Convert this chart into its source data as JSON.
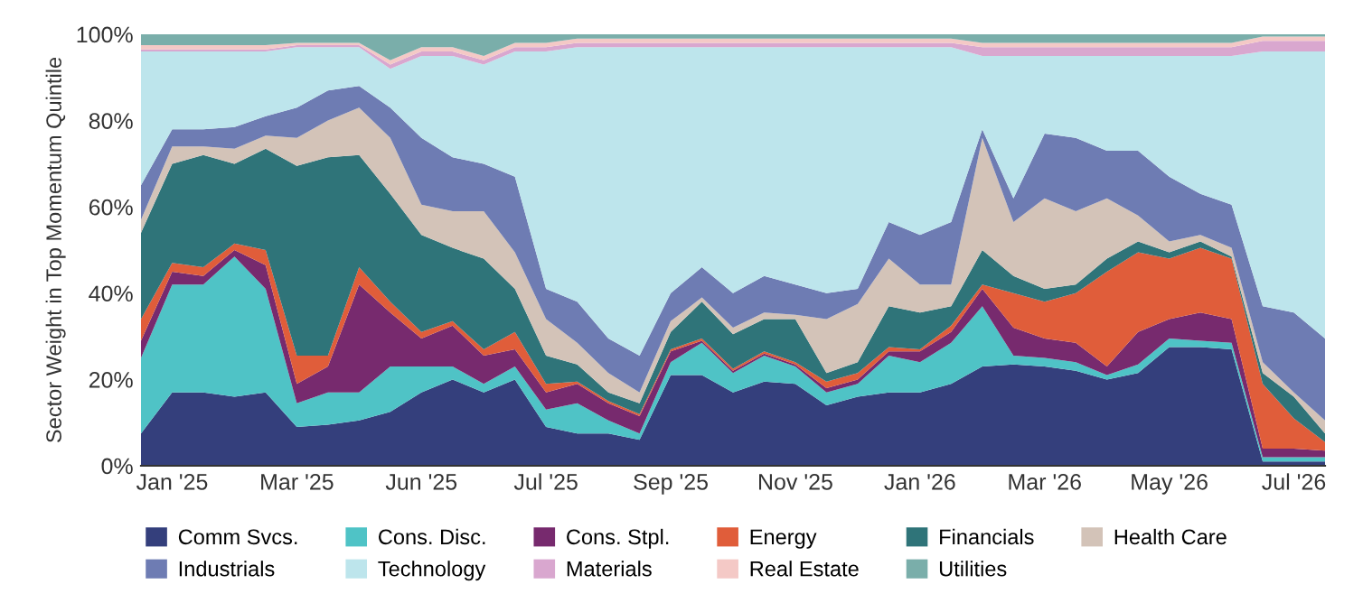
{
  "chart_data": {
    "type": "area",
    "stacked": true,
    "ylabel": "Sector Weight in Top Momentum Quintile",
    "categories": [
      null,
      "Jan '25",
      null,
      null,
      null,
      "Mar '25",
      null,
      null,
      null,
      "Jun '25",
      null,
      null,
      null,
      "Jul '25",
      null,
      null,
      null,
      "Sep '25",
      null,
      null,
      null,
      "Nov '25",
      null,
      null,
      null,
      "Jan '26",
      null,
      null,
      null,
      "Mar '26",
      null,
      null,
      null,
      "May '26",
      null,
      null,
      null,
      "Jul '26",
      null
    ],
    "ylim": [
      0,
      100
    ],
    "yticks": [
      {
        "value": 0,
        "label": "0%"
      },
      {
        "value": 20,
        "label": "20%"
      },
      {
        "value": 40,
        "label": "40%"
      },
      {
        "value": 60,
        "label": "60%"
      },
      {
        "value": 80,
        "label": "80%"
      },
      {
        "value": 100,
        "label": "100%"
      }
    ],
    "grid": false,
    "legend": "bottom",
    "series": [
      {
        "name": "Comm Svcs.",
        "color": "#343f7c",
        "values": [
          7.5,
          17,
          17,
          16,
          17,
          9,
          9.5,
          10.5,
          12.5,
          17,
          20,
          17,
          20,
          9,
          7.5,
          7.5,
          6,
          21,
          21,
          17,
          19.5,
          19,
          14,
          16,
          17,
          17,
          19,
          23,
          23.5,
          23,
          22,
          20,
          21.5,
          27.5,
          27.5,
          27,
          1,
          1,
          1
        ]
      },
      {
        "name": "Cons. Disc.",
        "color": "#4fc3c6",
        "values": [
          17.5,
          25,
          25,
          32.5,
          24,
          5.5,
          7.5,
          6.5,
          10.5,
          6,
          3,
          2,
          3,
          4,
          7,
          3,
          1.5,
          3,
          7.5,
          4.5,
          6,
          4,
          3,
          3,
          8.5,
          7,
          9.5,
          14,
          2,
          2,
          2,
          1,
          2,
          2,
          1.5,
          1.5,
          1,
          1,
          1
        ]
      },
      {
        "name": "Cons. Stpl.",
        "color": "#772a6e",
        "values": [
          4,
          3,
          2,
          1.5,
          5.5,
          4.5,
          6,
          25,
          12.5,
          6.5,
          9.5,
          6.5,
          4,
          4,
          4.5,
          4,
          4,
          2.5,
          0.5,
          0.5,
          0.5,
          0.5,
          1,
          1,
          1,
          2.5,
          2.5,
          4,
          6.5,
          4.5,
          4.5,
          2,
          7.5,
          4.5,
          6.5,
          5.5,
          2,
          2,
          1.5
        ]
      },
      {
        "name": "Energy",
        "color": "#e05d3a",
        "values": [
          5,
          2,
          2,
          1.5,
          3.5,
          6.5,
          2.5,
          4,
          2.5,
          1.5,
          1,
          1.5,
          4,
          2,
          0.5,
          0.5,
          0.5,
          0.5,
          0.5,
          0.5,
          0.5,
          0.5,
          1.5,
          1.5,
          1,
          0.5,
          1.5,
          1,
          8,
          8.5,
          11.5,
          22,
          18.5,
          14,
          15,
          14,
          15,
          7,
          2
        ]
      },
      {
        "name": "Financials",
        "color": "#2f7479",
        "values": [
          20,
          23,
          26,
          18.5,
          23.5,
          44,
          46,
          26,
          25,
          22.5,
          17,
          21,
          10,
          6.5,
          4,
          2,
          2.5,
          4,
          8.5,
          8,
          7.5,
          10,
          2,
          2.5,
          9.5,
          8.5,
          4.5,
          8,
          4,
          3,
          2,
          3,
          2.5,
          1.5,
          1.5,
          0.5,
          2.5,
          5,
          2
        ]
      },
      {
        "name": "Health Care",
        "color": "#d3c3b8",
        "values": [
          3,
          4,
          2,
          3.5,
          3,
          6.5,
          8.5,
          11,
          13,
          7,
          8.5,
          11,
          8.5,
          8.5,
          5,
          4.5,
          2.5,
          2.5,
          1,
          1.5,
          1.5,
          1,
          12.5,
          13.5,
          11,
          6.5,
          5,
          26,
          12.5,
          21,
          17,
          14,
          6,
          2.5,
          1.5,
          2,
          2.5,
          1,
          3
        ]
      },
      {
        "name": "Industrials",
        "color": "#6e7cb3",
        "values": [
          8,
          4,
          4,
          5,
          4.5,
          7,
          7,
          5,
          7,
          15.5,
          12.5,
          11,
          17.5,
          7,
          9.5,
          8,
          8.5,
          6.5,
          7,
          8,
          8.5,
          7,
          6,
          3.5,
          8.5,
          11.5,
          14.5,
          2,
          5.5,
          15,
          17,
          11,
          15,
          15,
          9.5,
          10,
          13,
          18.5,
          19
        ]
      },
      {
        "name": "Technology",
        "color": "#bde5ec",
        "values": [
          31,
          18,
          18,
          17.5,
          15,
          14,
          10,
          9,
          9,
          19,
          23.5,
          23,
          29,
          55,
          59,
          67.5,
          71.5,
          57,
          51,
          57,
          53,
          55,
          57,
          56,
          40.5,
          43.5,
          40.5,
          17,
          33,
          18,
          19,
          22,
          22,
          28,
          32,
          34.5,
          59,
          60.5,
          66.5
        ]
      },
      {
        "name": "Materials",
        "color": "#d9a7cf",
        "values": [
          0.5,
          0.5,
          0.5,
          0.5,
          0.5,
          0.5,
          0.5,
          0.5,
          1,
          1,
          1,
          1,
          1,
          1,
          1,
          1,
          1,
          1,
          1,
          1,
          1,
          1,
          1,
          1,
          1,
          1,
          1,
          2,
          2,
          2,
          2,
          2,
          2,
          2,
          2,
          2,
          2.5,
          2.5,
          2.5
        ]
      },
      {
        "name": "Real Estate",
        "color": "#f4c9c6",
        "values": [
          1,
          1,
          1,
          1,
          1,
          0.5,
          0.5,
          0.5,
          1,
          1,
          1,
          1,
          1,
          1,
          1,
          1,
          1,
          1,
          1,
          1,
          1,
          1,
          1,
          1,
          1,
          1,
          1,
          1,
          1,
          1,
          1,
          1,
          1,
          1,
          1,
          1,
          1,
          1,
          1
        ]
      },
      {
        "name": "Utilities",
        "color": "#7aaeaa",
        "values": [
          2.5,
          2.5,
          2.5,
          2.5,
          2.5,
          2,
          2,
          2,
          6,
          3,
          3,
          5,
          2,
          2,
          1,
          1,
          1,
          1,
          1,
          1,
          1,
          1,
          1,
          1,
          1,
          1,
          1,
          2,
          2,
          2,
          2,
          2,
          2,
          2,
          2,
          2,
          0.5,
          0.5,
          0.5
        ]
      }
    ]
  }
}
